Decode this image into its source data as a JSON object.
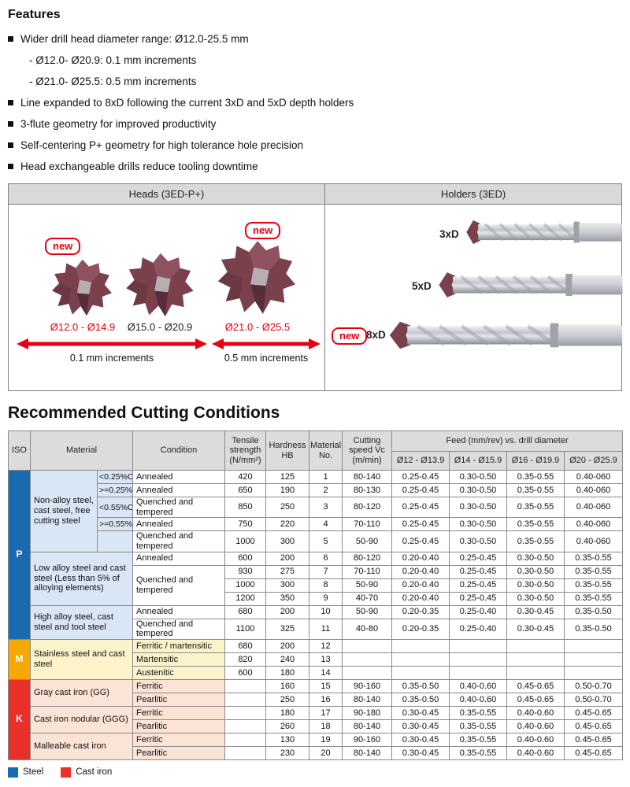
{
  "features": {
    "title": "Features",
    "items": [
      {
        "bullet": true,
        "text": "Wider drill head diameter range: Ø12.0-25.5 mm"
      },
      {
        "bullet": false,
        "text": "- Ø12.0- Ø20.9: 0.1 mm increments"
      },
      {
        "bullet": false,
        "text": "- Ø21.0- Ø25.5: 0.5 mm increments"
      },
      {
        "bullet": true,
        "text": "Line expanded to 8xD following the current 3xD and 5xD depth holders"
      },
      {
        "bullet": true,
        "text": "3-flute geometry for improved productivity"
      },
      {
        "bullet": true,
        "text": "Self-centering P+ geometry for high tolerance hole precision"
      },
      {
        "bullet": true,
        "text": "Head exchangeable drills reduce tooling downtime"
      }
    ]
  },
  "panel": {
    "heads_title": "Heads (3ED-P+)",
    "holders_title": "Holders (3ED)",
    "new_label": "new",
    "heads": [
      {
        "range": "Ø12.0 - Ø14.9",
        "new": true
      },
      {
        "range": "Ø15.0 - Ø20.9",
        "new": false
      },
      {
        "range": "Ø21.0 - Ø25.5",
        "new": true
      }
    ],
    "increments": [
      "0.1 mm increments",
      "0.5 mm increments"
    ],
    "holders": [
      {
        "label": "3xD",
        "new": false
      },
      {
        "label": "5xD",
        "new": false
      },
      {
        "label": "8xD",
        "new": true
      }
    ]
  },
  "cutting": {
    "title": "Recommended Cutting Conditions",
    "headers": {
      "iso": "ISO",
      "material": "Material",
      "condition": "Condition",
      "tensile": "Tensile strength (N/mm²)",
      "hardness": "Hardness HB",
      "material_no": "Material No.",
      "cutting_speed": "Cutting speed Vc (m/min)",
      "feed": "Feed (mm/rev) vs. drill diameter",
      "feed_cols": [
        "Ø12 - Ø13.9",
        "Ø14 - Ø15.9",
        "Ø16 - Ø19.9",
        "Ø20 - Ø25.9"
      ]
    },
    "rows": [
      [
        {
          "t": "P",
          "rs": 11,
          "cls": "iso iso-p",
          "n": "iso-cell-p"
        },
        {
          "t": "Non-alloy steel, cast steel, free cutting steel",
          "rs": 5,
          "cls": "mat mat-p",
          "n": "material-cell"
        },
        {
          "t": "<0.25%C",
          "cls": "sub mat-p",
          "n": "carbon-cell"
        },
        {
          "t": "Annealed",
          "cls": "cond",
          "n": "condition-cell"
        },
        {
          "t": "420"
        },
        {
          "t": "125"
        },
        {
          "t": "1"
        },
        {
          "t": "80-140"
        },
        {
          "t": "0.25-0.45"
        },
        {
          "t": "0.30-0.50"
        },
        {
          "t": "0.35-0.55"
        },
        {
          "t": "0.40-060"
        }
      ],
      [
        {
          "t": ">=0.25%C",
          "cls": "sub mat-p",
          "n": "carbon-cell"
        },
        {
          "t": "Annealed",
          "cls": "cond",
          "n": "condition-cell"
        },
        {
          "t": "650"
        },
        {
          "t": "190"
        },
        {
          "t": "2"
        },
        {
          "t": "80-130"
        },
        {
          "t": "0.25-0.45"
        },
        {
          "t": "0.30-0.50"
        },
        {
          "t": "0.35-0.55"
        },
        {
          "t": "0.40-060"
        }
      ],
      [
        {
          "t": "<0.55%C",
          "cls": "sub mat-p",
          "n": "carbon-cell"
        },
        {
          "t": "Quenched and tempered",
          "cls": "cond",
          "n": "condition-cell"
        },
        {
          "t": "850"
        },
        {
          "t": "250"
        },
        {
          "t": "3"
        },
        {
          "t": "80-120"
        },
        {
          "t": "0.25-0.45"
        },
        {
          "t": "0.30-0.50"
        },
        {
          "t": "0.35-0.55"
        },
        {
          "t": "0.40-060"
        }
      ],
      [
        {
          "t": ">=0.55%C",
          "cls": "sub mat-p",
          "n": "carbon-cell"
        },
        {
          "t": "Annealed",
          "cls": "cond",
          "n": "condition-cell"
        },
        {
          "t": "750"
        },
        {
          "t": "220"
        },
        {
          "t": "4"
        },
        {
          "t": "70-110"
        },
        {
          "t": "0.25-0.45"
        },
        {
          "t": "0.30-0.50"
        },
        {
          "t": "0.35-0.55"
        },
        {
          "t": "0.40-060"
        }
      ],
      [
        {
          "t": "",
          "cls": "sub mat-p",
          "n": "carbon-cell"
        },
        {
          "t": "Quenched and tempered",
          "cls": "cond",
          "n": "condition-cell"
        },
        {
          "t": "1000"
        },
        {
          "t": "300"
        },
        {
          "t": "5"
        },
        {
          "t": "50-90"
        },
        {
          "t": "0.25-0.45"
        },
        {
          "t": "0.30-0.50"
        },
        {
          "t": "0.35-0.55"
        },
        {
          "t": "0.40-060"
        }
      ],
      [
        {
          "t": "Low alloy steel and cast steel (Less than 5% of alloying elements)",
          "rs": 4,
          "cs": 2,
          "cls": "mat mat-p",
          "n": "material-cell"
        },
        {
          "t": "Annealed",
          "cls": "cond",
          "n": "condition-cell"
        },
        {
          "t": "600"
        },
        {
          "t": "200"
        },
        {
          "t": "6"
        },
        {
          "t": "80-120"
        },
        {
          "t": "0.20-0.40"
        },
        {
          "t": "0.25-0.45"
        },
        {
          "t": "0.30-0.50"
        },
        {
          "t": "0.35-0.55"
        }
      ],
      [
        {
          "t": "Quenched and tempered",
          "rs": 3,
          "cls": "cond",
          "n": "condition-cell"
        },
        {
          "t": "930"
        },
        {
          "t": "275"
        },
        {
          "t": "7"
        },
        {
          "t": "70-110"
        },
        {
          "t": "0.20-0.40"
        },
        {
          "t": "0.25-0.45"
        },
        {
          "t": "0.30-0.50"
        },
        {
          "t": "0.35-0.55"
        }
      ],
      [
        {
          "t": "1000"
        },
        {
          "t": "300"
        },
        {
          "t": "8"
        },
        {
          "t": "50-90"
        },
        {
          "t": "0.20-0.40"
        },
        {
          "t": "0.25-0.45"
        },
        {
          "t": "0.30-0.50"
        },
        {
          "t": "0.35-0.55"
        }
      ],
      [
        {
          "t": "1200"
        },
        {
          "t": "350"
        },
        {
          "t": "9"
        },
        {
          "t": "40-70"
        },
        {
          "t": "0.20-0.40"
        },
        {
          "t": "0.25-0.45"
        },
        {
          "t": "0.30-0.50"
        },
        {
          "t": "0.35-0.55"
        }
      ],
      [
        {
          "t": "High alloy steel, cast steel and tool steel",
          "rs": 2,
          "cs": 2,
          "cls": "mat mat-p",
          "n": "material-cell"
        },
        {
          "t": "Annealed",
          "cls": "cond",
          "n": "condition-cell"
        },
        {
          "t": "680"
        },
        {
          "t": "200"
        },
        {
          "t": "10"
        },
        {
          "t": "50-90"
        },
        {
          "t": "0.20-0.35"
        },
        {
          "t": "0.25-0.40"
        },
        {
          "t": "0.30-0.45"
        },
        {
          "t": "0.35-0.50"
        }
      ],
      [
        {
          "t": "Quenched and tempered",
          "cls": "cond",
          "n": "condition-cell"
        },
        {
          "t": "1100"
        },
        {
          "t": "325"
        },
        {
          "t": "11"
        },
        {
          "t": "40-80"
        },
        {
          "t": "0.20-0.35"
        },
        {
          "t": "0.25-0.40"
        },
        {
          "t": "0.30-0.45"
        },
        {
          "t": "0.35-0.50"
        }
      ],
      [
        {
          "t": "M",
          "rs": 3,
          "cls": "iso iso-m",
          "n": "iso-cell-m"
        },
        {
          "t": "Stainless steel and cast steel",
          "rs": 3,
          "cs": 2,
          "cls": "mat mat-m",
          "n": "material-cell"
        },
        {
          "t": "Ferritic / martensitic",
          "cls": "cond cond-m",
          "n": "condition-cell"
        },
        {
          "t": "680"
        },
        {
          "t": "200"
        },
        {
          "t": "12"
        },
        {
          "t": ""
        },
        {
          "t": ""
        },
        {
          "t": ""
        },
        {
          "t": ""
        },
        {
          "t": ""
        }
      ],
      [
        {
          "t": "Martensitic",
          "cls": "cond cond-m",
          "n": "condition-cell"
        },
        {
          "t": "820"
        },
        {
          "t": "240"
        },
        {
          "t": "13"
        },
        {
          "t": ""
        },
        {
          "t": ""
        },
        {
          "t": ""
        },
        {
          "t": ""
        },
        {
          "t": ""
        }
      ],
      [
        {
          "t": "Austenitic",
          "cls": "cond cond-m",
          "n": "condition-cell"
        },
        {
          "t": "600"
        },
        {
          "t": "180"
        },
        {
          "t": "14"
        },
        {
          "t": ""
        },
        {
          "t": ""
        },
        {
          "t": ""
        },
        {
          "t": ""
        },
        {
          "t": ""
        }
      ],
      [
        {
          "t": "K",
          "rs": 6,
          "cls": "iso iso-k",
          "n": "iso-cell-k"
        },
        {
          "t": "Gray cast iron (GG)",
          "rs": 2,
          "cs": 2,
          "cls": "mat mat-k",
          "n": "material-cell"
        },
        {
          "t": "Ferritic",
          "cls": "cond cond-k",
          "n": "condition-cell"
        },
        {
          "t": ""
        },
        {
          "t": "160"
        },
        {
          "t": "15"
        },
        {
          "t": "90-160"
        },
        {
          "t": "0.35-0.50"
        },
        {
          "t": "0.40-0.60"
        },
        {
          "t": "0.45-0.65"
        },
        {
          "t": "0.50-0.70"
        }
      ],
      [
        {
          "t": "Pearlitic",
          "cls": "cond cond-k",
          "n": "condition-cell"
        },
        {
          "t": ""
        },
        {
          "t": "250"
        },
        {
          "t": "16"
        },
        {
          "t": "80-140"
        },
        {
          "t": "0.35-0.50"
        },
        {
          "t": "0.40-0.60"
        },
        {
          "t": "0.45-0.65"
        },
        {
          "t": "0.50-0.70"
        }
      ],
      [
        {
          "t": "Cast iron nodular (GGG)",
          "rs": 2,
          "cs": 2,
          "cls": "mat mat-k",
          "n": "material-cell"
        },
        {
          "t": "Ferritic",
          "cls": "cond cond-k",
          "n": "condition-cell"
        },
        {
          "t": ""
        },
        {
          "t": "180"
        },
        {
          "t": "17"
        },
        {
          "t": "90-180"
        },
        {
          "t": "0.30-0.45"
        },
        {
          "t": "0.35-0.55"
        },
        {
          "t": "0.40-0.60"
        },
        {
          "t": "0.45-0.65"
        }
      ],
      [
        {
          "t": "Pearlitic",
          "cls": "cond cond-k",
          "n": "condition-cell"
        },
        {
          "t": ""
        },
        {
          "t": "260"
        },
        {
          "t": "18"
        },
        {
          "t": "80-140"
        },
        {
          "t": "0.30-0.45"
        },
        {
          "t": "0.35-0.55"
        },
        {
          "t": "0.40-0.60"
        },
        {
          "t": "0.45-0.65"
        }
      ],
      [
        {
          "t": "Malleable cast iron",
          "rs": 2,
          "cs": 2,
          "cls": "mat mat-k",
          "n": "material-cell"
        },
        {
          "t": "Ferritic",
          "cls": "cond cond-k",
          "n": "condition-cell"
        },
        {
          "t": ""
        },
        {
          "t": "130"
        },
        {
          "t": "19"
        },
        {
          "t": "90-160"
        },
        {
          "t": "0.30-0.45"
        },
        {
          "t": "0.35-0.55"
        },
        {
          "t": "0.40-0.60"
        },
        {
          "t": "0.45-0.65"
        }
      ],
      [
        {
          "t": "Pearlitic",
          "cls": "cond cond-k",
          "n": "condition-cell"
        },
        {
          "t": ""
        },
        {
          "t": "230"
        },
        {
          "t": "20"
        },
        {
          "t": "80-140"
        },
        {
          "t": "0.30-0.45"
        },
        {
          "t": "0.35-0.55"
        },
        {
          "t": "0.40-0.60"
        },
        {
          "t": "0.45-0.65"
        }
      ]
    ]
  },
  "legend": [
    {
      "name": "steel-swatch",
      "label": "Steel",
      "color": "#1a6ab0"
    },
    {
      "name": "cast-iron-swatch",
      "label": "Cast iron",
      "color": "#e8312a"
    }
  ],
  "colors": {
    "accent_red": "#e60012",
    "iso_p_blue": "#1a6ab0",
    "iso_m_yellow": "#f6a800",
    "iso_k_red": "#e8312a",
    "p_row_blue": "#d9e6f5",
    "m_row_yellow": "#fdf3cb",
    "k_row_salmon": "#fbe3d5",
    "header_gray": "#dcdcdc"
  }
}
